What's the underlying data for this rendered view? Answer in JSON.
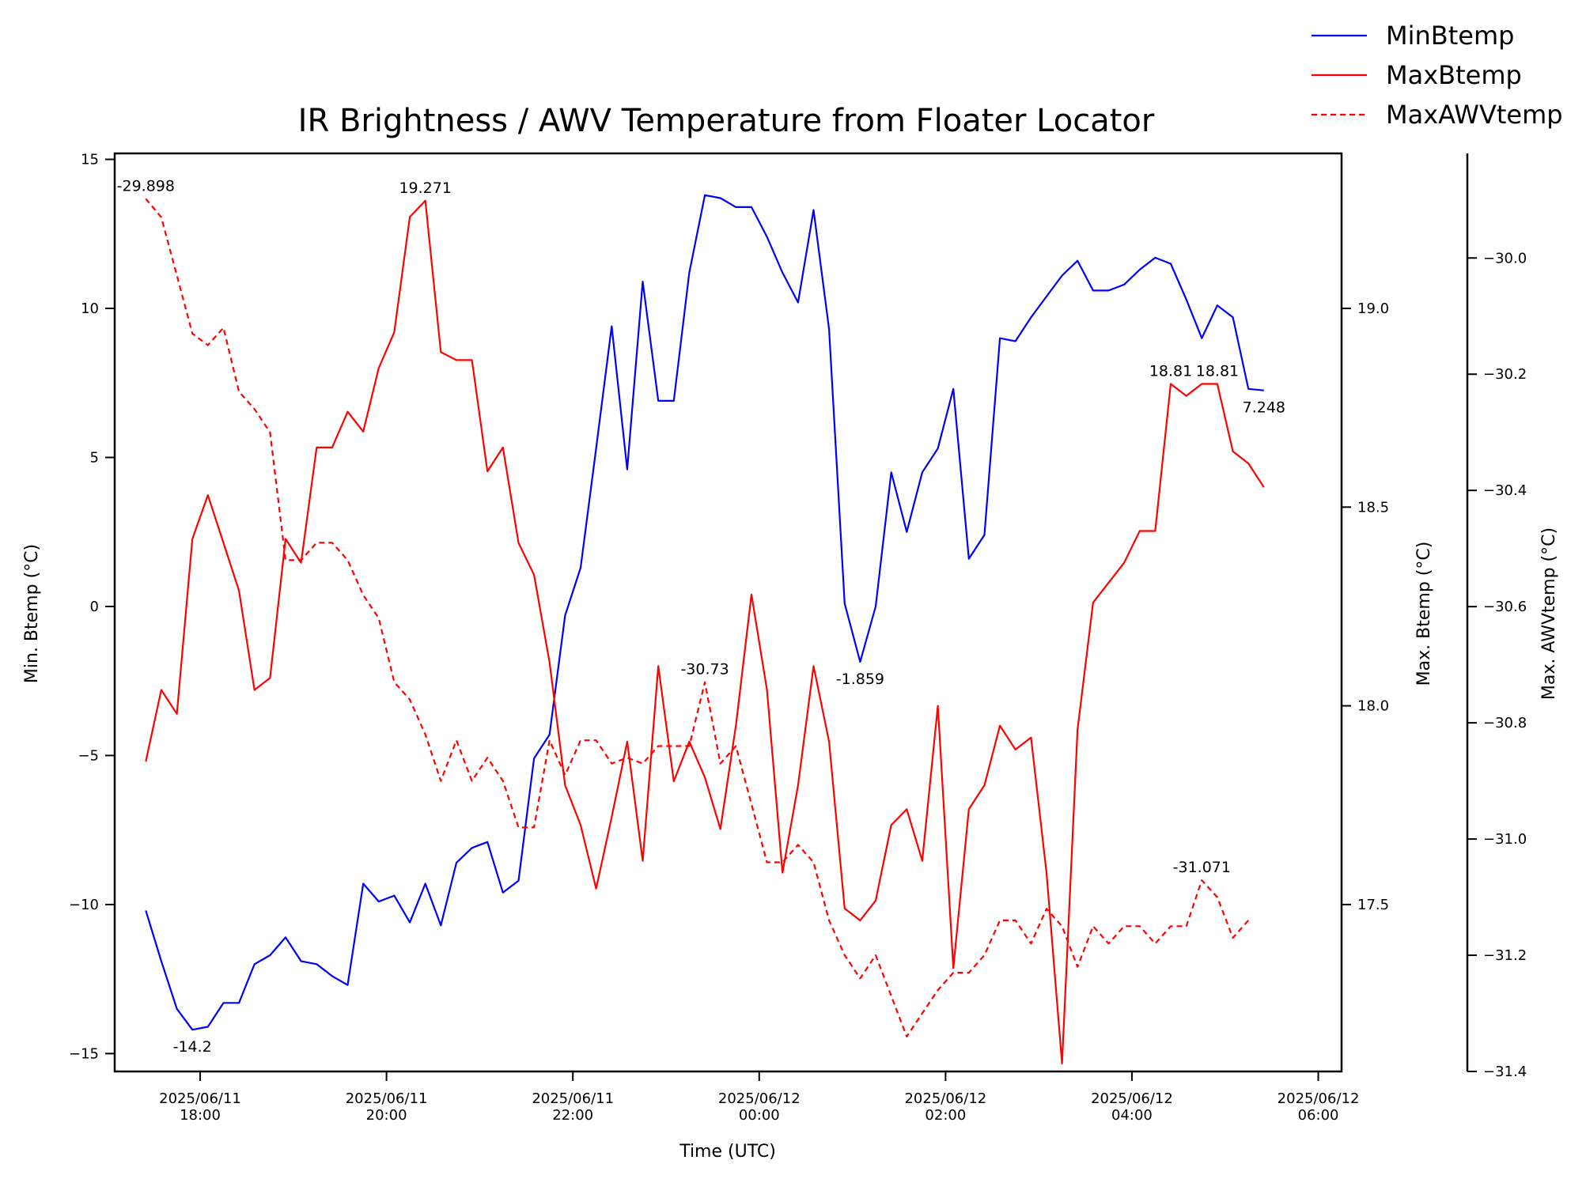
{
  "chart_data": {
    "type": "line",
    "title": "IR Brightness / AWV Temperature from Floater Locator",
    "xlabel": "Time (UTC)",
    "x_ticks": [
      {
        "t": 0,
        "line1": "2025/06/11",
        "line2": "18:00"
      },
      {
        "t": 2,
        "line1": "2025/06/11",
        "line2": "20:00"
      },
      {
        "t": 4,
        "line1": "2025/06/11",
        "line2": "22:00"
      },
      {
        "t": 6,
        "line1": "2025/06/12",
        "line2": "00:00"
      },
      {
        "t": 8,
        "line1": "2025/06/12",
        "line2": "02:00"
      },
      {
        "t": 10,
        "line1": "2025/06/12",
        "line2": "04:00"
      },
      {
        "t": 12,
        "line1": "2025/06/12",
        "line2": "06:00"
      }
    ],
    "x_start": "2025/06/11 17:25",
    "x_step_minutes": 10,
    "xlim_hours_since_1800": [
      -0.917,
      12.25
    ],
    "axes": [
      {
        "id": "left",
        "label": "Min. Btemp (°C)",
        "ylim": [
          -15.6,
          15.2
        ],
        "ticks": [
          15,
          10,
          5,
          0,
          -5,
          -10,
          -15
        ],
        "tick_labels": [
          "15",
          "10",
          "5",
          "0",
          "−5",
          "−10",
          "−15"
        ]
      },
      {
        "id": "right1",
        "label": "Max. Btemp (°C)",
        "ylim": [
          17.08,
          19.39
        ],
        "ticks": [
          17.5,
          18.0,
          18.5,
          19.0
        ],
        "tick_labels": [
          "17.5",
          "18.0",
          "18.5",
          "19.0"
        ]
      },
      {
        "id": "right2",
        "label": "Max. AWVtemp (°C)",
        "ylim": [
          -31.4,
          -29.82
        ],
        "ticks": [
          -30.0,
          -30.2,
          -30.4,
          -30.6,
          -30.8,
          -31.0,
          -31.2,
          -31.4
        ],
        "tick_labels": [
          "−30.0",
          "−30.2",
          "−30.4",
          "−30.6",
          "−30.8",
          "−31.0",
          "−31.2",
          "−31.4"
        ]
      }
    ],
    "legend_position": "top-right outside",
    "series": [
      {
        "name": "MinBtemp",
        "axis": "left",
        "color": "#0000ff",
        "dash": "solid",
        "values": [
          -10.2,
          -11.9,
          -13.5,
          -14.2,
          -14.1,
          -13.3,
          -13.3,
          -12.0,
          -11.7,
          -11.1,
          -11.9,
          -12.0,
          -12.4,
          -12.7,
          -9.3,
          -9.9,
          -9.7,
          -10.6,
          -9.3,
          -10.7,
          -8.6,
          -8.1,
          -7.9,
          -9.6,
          -9.2,
          -5.1,
          -4.3,
          -0.3,
          1.3,
          5.3,
          9.4,
          4.6,
          10.9,
          6.9,
          6.9,
          11.2,
          13.8,
          13.7,
          13.4,
          13.4,
          12.4,
          11.2,
          10.2,
          13.3,
          9.3,
          0.1,
          -1.859,
          0.0,
          4.5,
          2.5,
          4.5,
          5.3,
          7.3,
          1.6,
          2.4,
          9.0,
          8.9,
          9.7,
          10.4,
          11.1,
          11.6,
          10.6,
          10.6,
          10.8,
          11.3,
          11.7,
          11.5,
          10.3,
          9.0,
          10.1,
          9.7,
          7.3,
          7.248
        ]
      },
      {
        "name": "MaxBtemp",
        "axis": "right1",
        "color": "#ff0000",
        "dash": "solid",
        "values": [
          17.86,
          18.04,
          17.98,
          18.42,
          18.53,
          18.41,
          18.29,
          18.04,
          18.07,
          18.42,
          18.36,
          18.65,
          18.65,
          18.74,
          18.69,
          18.85,
          18.94,
          19.23,
          19.271,
          18.89,
          18.87,
          18.87,
          18.59,
          18.65,
          18.41,
          18.33,
          18.11,
          17.8,
          17.7,
          17.54,
          17.72,
          17.91,
          17.61,
          18.1,
          17.81,
          17.91,
          17.82,
          17.69,
          17.95,
          18.28,
          18.04,
          17.58,
          17.8,
          18.1,
          17.91,
          17.49,
          17.46,
          17.51,
          17.7,
          17.74,
          17.61,
          18.0,
          17.34,
          17.74,
          17.8,
          17.95,
          17.89,
          17.92,
          17.58,
          17.1,
          17.94,
          18.26,
          18.31,
          18.36,
          18.44,
          18.44,
          18.81,
          18.78,
          18.81,
          18.81,
          18.64,
          18.61,
          18.55
        ]
      },
      {
        "name": "MaxAWVtemp",
        "axis": "right2",
        "color": "#ff0000",
        "dash": "dashed",
        "values": [
          -29.898,
          -29.93,
          -30.03,
          -30.13,
          -30.15,
          -30.12,
          -30.23,
          -30.26,
          -30.3,
          -30.52,
          -30.52,
          -30.49,
          -30.49,
          -30.52,
          -30.58,
          -30.62,
          -30.73,
          -30.76,
          -30.82,
          -30.9,
          -30.83,
          -30.9,
          -30.86,
          -30.9,
          -30.98,
          -30.98,
          -30.83,
          -30.89,
          -30.83,
          -30.83,
          -30.87,
          -30.86,
          -30.87,
          -30.84,
          -30.84,
          -30.84,
          -30.73,
          -30.87,
          -30.84,
          -30.94,
          -31.04,
          -31.04,
          -31.01,
          -31.04,
          -31.14,
          -31.2,
          -31.24,
          -31.2,
          -31.27,
          -31.34,
          -31.3,
          -31.26,
          -31.23,
          -31.23,
          -31.2,
          -31.14,
          -31.14,
          -31.18,
          -31.12,
          -31.15,
          -31.22,
          -31.15,
          -31.18,
          -31.15,
          -31.15,
          -31.18,
          -31.15,
          -31.15,
          -31.071,
          -31.1,
          -31.17,
          -31.14
        ]
      }
    ],
    "annotations": [
      {
        "series": "MinBtemp",
        "index": 3,
        "text": "-14.2",
        "place": "below"
      },
      {
        "series": "MinBtemp",
        "index": 46,
        "text": "-1.859",
        "place": "below"
      },
      {
        "series": "MinBtemp",
        "index": 72,
        "text": "7.248",
        "place": "below"
      },
      {
        "series": "MaxBtemp",
        "index": 18,
        "text": "19.271",
        "place": "above"
      },
      {
        "series": "MaxBtemp",
        "index": 66,
        "text": "18.81",
        "place": "above"
      },
      {
        "series": "MaxBtemp",
        "index": 69,
        "text": "18.81",
        "place": "above"
      },
      {
        "series": "MaxAWVtemp",
        "index": 0,
        "text": "-29.898",
        "place": "above"
      },
      {
        "series": "MaxAWVtemp",
        "index": 36,
        "text": "-30.73",
        "place": "above"
      },
      {
        "series": "MaxAWVtemp",
        "index": 68,
        "text": "-31.071",
        "place": "above"
      }
    ],
    "grid": false
  }
}
